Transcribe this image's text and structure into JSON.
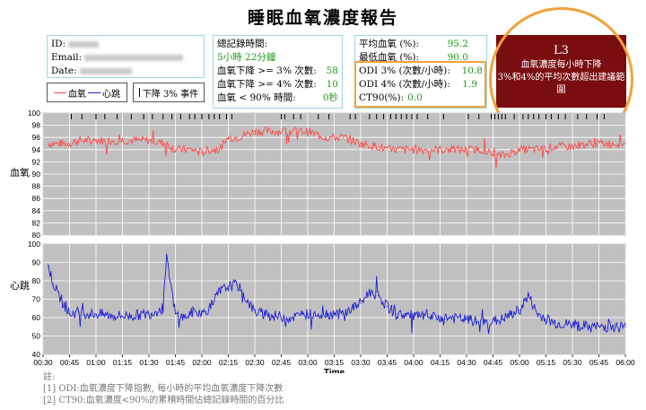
{
  "title": "睡眠血氧濃度報告",
  "info": {
    "id_label": "ID:",
    "email_label": "Email:",
    "date_label": "Date:"
  },
  "stats1": {
    "total_label": "總記錄時間:",
    "total_value": "5小時 22分鐘",
    "drop3_label": "血氧下降 >= 3% 次數:",
    "drop3_value": "58",
    "drop4_label": "血氧下降 >= 4% 次數:",
    "drop4_value": "10",
    "below90_label": "血氧 < 90% 時間:",
    "below90_value": "0秒"
  },
  "stats2": {
    "avg_label": "平均血氧 (%):",
    "avg_value": "95.2",
    "min_label": "最低血氧 (%):",
    "min_value": "90.0",
    "odi3_label": "ODI 3% (次數/小時):",
    "odi3_value": "10.8",
    "odi4_label": "ODI 4% (次數/小時):",
    "odi4_value": "1.9",
    "ct90_label": "CT90(%):",
    "ct90_value": "0.0"
  },
  "level": {
    "code": "L3",
    "line1": "血氧濃度每小時下降",
    "line2": "3%和4%的平均次數超出建議範圍"
  },
  "legend": {
    "spo2": "血氧",
    "hr": "心跳",
    "event": "下降 3% 事件"
  },
  "notes": {
    "title": "註:",
    "n1": "[1] ODI:血氧濃度下降指數, 每小時的平均血氧濃度下降次數",
    "n2": "[2] CT90:血氧濃度<90%的累積時間佔總記錄時間的百分比"
  },
  "colors": {
    "spo2": "#ff4a4a",
    "hr": "#1f1fd6",
    "plot_bg": "#c0c0c0",
    "highlight": "#f2a23a",
    "level_bg": "#7a0d10"
  },
  "chart_data": [
    {
      "type": "line",
      "ylabel": "血氧",
      "ylim": [
        80,
        100
      ],
      "yticks": [
        80,
        82,
        84,
        86,
        88,
        90,
        92,
        94,
        96,
        98,
        100
      ],
      "grid": true,
      "x_range": [
        "00:30",
        "06:00"
      ],
      "series": [
        {
          "name": "血氧",
          "x": [
            "00:33",
            "00:40",
            "00:45",
            "00:50",
            "00:55",
            "01:00",
            "01:10",
            "01:20",
            "01:30",
            "01:40",
            "01:45",
            "01:50",
            "01:55",
            "02:00",
            "02:05",
            "02:10",
            "02:15",
            "02:20",
            "02:30",
            "02:40",
            "02:50",
            "03:00",
            "03:10",
            "03:20",
            "03:30",
            "03:40",
            "03:45",
            "03:50",
            "03:55",
            "04:00",
            "04:10",
            "04:20",
            "04:30",
            "04:40",
            "04:45",
            "04:50",
            "04:55",
            "05:00",
            "05:10",
            "05:20",
            "05:30",
            "05:40",
            "05:50",
            "06:00"
          ],
          "values": [
            95,
            95,
            95,
            95.5,
            95.5,
            95.5,
            95.5,
            95.5,
            95.5,
            95,
            94,
            94,
            94,
            93.5,
            94,
            94,
            96,
            96,
            97,
            97,
            97,
            97,
            96,
            96,
            95,
            94.5,
            94,
            94,
            94,
            94,
            94,
            94,
            94,
            94,
            93,
            93,
            93.5,
            94,
            94,
            94.5,
            94.5,
            95,
            95,
            95
          ]
        }
      ],
      "event_marks": [
        "00:46",
        "00:52",
        "01:00",
        "01:05",
        "01:12",
        "01:20",
        "01:27",
        "01:32",
        "01:38",
        "01:43",
        "01:48",
        "01:53",
        "01:56",
        "02:00",
        "02:04",
        "02:07",
        "02:10",
        "02:14",
        "02:17",
        "02:45",
        "02:47",
        "02:52",
        "02:56",
        "03:06",
        "03:12",
        "03:24",
        "03:27",
        "03:35",
        "03:39",
        "03:43",
        "03:47",
        "03:50",
        "03:53",
        "03:56",
        "03:59",
        "04:02",
        "04:08",
        "04:17",
        "04:31",
        "04:37",
        "04:44",
        "04:46",
        "04:48",
        "04:50",
        "04:52",
        "04:57",
        "05:02",
        "05:05",
        "05:08",
        "05:11",
        "05:15",
        "05:18",
        "05:22",
        "05:26",
        "05:33",
        "05:38",
        "05:44",
        "05:48"
      ]
    },
    {
      "type": "line",
      "ylabel": "心跳",
      "xlabel": "Time",
      "ylim": [
        40,
        100
      ],
      "yticks": [
        40,
        50,
        60,
        70,
        80,
        90,
        100
      ],
      "grid": true,
      "xticks": [
        "00:30",
        "00:45",
        "01:00",
        "01:15",
        "01:30",
        "01:45",
        "02:00",
        "02:15",
        "02:30",
        "02:45",
        "03:00",
        "03:15",
        "03:30",
        "03:45",
        "04:00",
        "04:15",
        "04:30",
        "04:45",
        "05:00",
        "05:15",
        "05:30",
        "05:45",
        "06:00"
      ],
      "series": [
        {
          "name": "心跳",
          "x": [
            "00:33",
            "00:36",
            "00:40",
            "00:45",
            "00:50",
            "00:55",
            "01:00",
            "01:10",
            "01:20",
            "01:30",
            "01:38",
            "01:40",
            "01:45",
            "01:50",
            "01:55",
            "02:00",
            "02:05",
            "02:10",
            "02:15",
            "02:20",
            "02:30",
            "02:40",
            "02:50",
            "03:00",
            "03:10",
            "03:20",
            "03:25",
            "03:30",
            "03:35",
            "03:40",
            "03:45",
            "03:50",
            "04:00",
            "04:10",
            "04:20",
            "04:30",
            "04:40",
            "04:50",
            "05:00",
            "05:05",
            "05:10",
            "05:20",
            "05:30",
            "05:40",
            "05:50",
            "06:00"
          ],
          "values": [
            88,
            78,
            70,
            62,
            63,
            62,
            62,
            61,
            61,
            62,
            65,
            92,
            62,
            60,
            63,
            62,
            66,
            74,
            77,
            78,
            63,
            61,
            60,
            62,
            62,
            62,
            65,
            68,
            74,
            72,
            66,
            62,
            61,
            60,
            60,
            59,
            57,
            59,
            64,
            72,
            62,
            57,
            56,
            55,
            55,
            55
          ]
        }
      ]
    }
  ]
}
